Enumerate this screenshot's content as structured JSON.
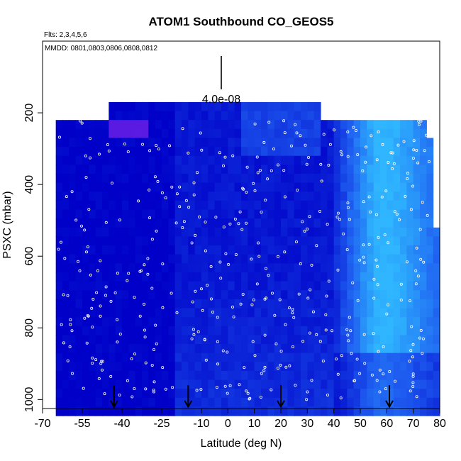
{
  "chart_data": {
    "type": "heatmap",
    "title": "ATOM1 Southbound CO_GEOS5",
    "flights_label": "Flts: 2,3,4,5,6",
    "dates_label": "MMDD: 0801,0803,0806,0808,0812",
    "scale_label": "4.0e-08",
    "xlabel": "Latitude (deg N)",
    "ylabel": "PSXC (mbar)",
    "xlim": [
      -70,
      80
    ],
    "ylim": [
      1025,
      0
    ],
    "y_reversed": true,
    "x_ticks": [
      -70,
      -55,
      -40,
      -25,
      -10,
      0,
      10,
      20,
      30,
      40,
      50,
      60,
      70,
      80
    ],
    "y_ticks": [
      200,
      400,
      600,
      800,
      1000
    ],
    "grid": false,
    "colormap": [
      "#0000c8",
      "#1e5cf0",
      "#2fb6ff",
      "#6a1ee6"
    ],
    "arrow_latitudes": [
      -43,
      -15,
      20,
      61
    ],
    "observation_markers": "white open circles"
  }
}
